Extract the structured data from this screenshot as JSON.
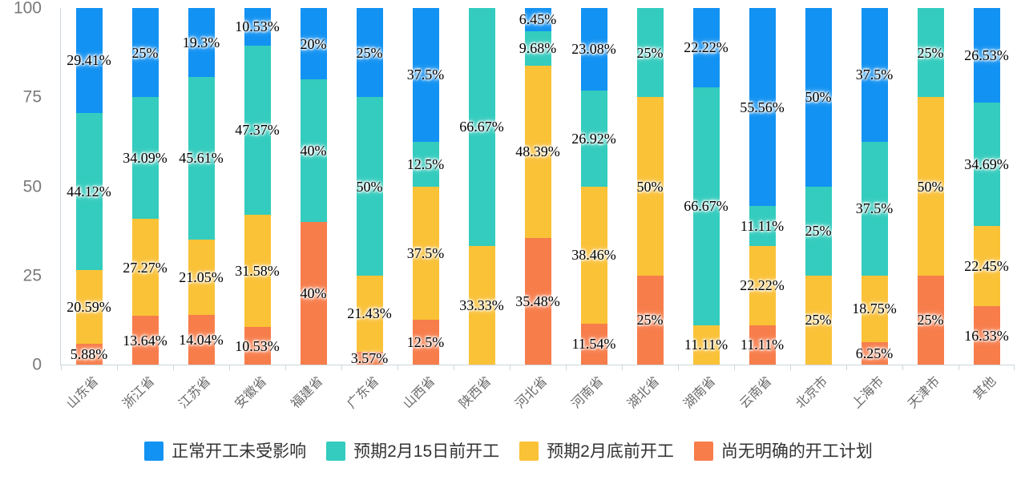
{
  "chart_data": {
    "type": "bar",
    "stacked": true,
    "orientation": "vertical",
    "categories": [
      "山东省",
      "浙江省",
      "江苏省",
      "安徽省",
      "福建省",
      "广东省",
      "山西省",
      "陕西省",
      "河北省",
      "河南省",
      "湖北省",
      "湖南省",
      "云南省",
      "北京市",
      "上海市",
      "天津市",
      "其他"
    ],
    "series": [
      {
        "name": "正常开工未受影响",
        "color": "#1292F2",
        "values": [
          29.41,
          25,
          19.3,
          10.53,
          20,
          25,
          37.5,
          0,
          6.45,
          23.08,
          0,
          22.22,
          55.56,
          50,
          37.5,
          0,
          26.53
        ]
      },
      {
        "name": "预期2月15日前开工",
        "color": "#33CCBE",
        "values": [
          44.12,
          34.09,
          45.61,
          47.37,
          40,
          50,
          12.5,
          66.67,
          9.68,
          26.92,
          25,
          66.67,
          11.11,
          25,
          37.5,
          25,
          34.69
        ]
      },
      {
        "name": "预期2月底前开工",
        "color": "#FAC237",
        "values": [
          20.59,
          27.27,
          21.05,
          31.58,
          0,
          21.43,
          37.5,
          33.33,
          48.39,
          38.46,
          50,
          11.11,
          22.22,
          25,
          18.75,
          50,
          22.45
        ]
      },
      {
        "name": "尚无明确的开工计划",
        "color": "#F77D4B",
        "values": [
          5.88,
          13.64,
          14.04,
          10.53,
          40,
          3.57,
          12.5,
          0,
          35.48,
          11.54,
          25,
          0,
          11.11,
          0,
          6.25,
          25,
          16.33
        ]
      }
    ],
    "stack_order_bottom_to_top": [
      3,
      2,
      1,
      0
    ],
    "value_suffix": "%",
    "ylim": [
      0,
      100
    ],
    "yticks": [
      "0",
      "25",
      "50",
      "75",
      "100"
    ],
    "grid": false,
    "legend_position": "bottom",
    "axis_color": "#ccd6dc",
    "label_color": "#000000"
  }
}
